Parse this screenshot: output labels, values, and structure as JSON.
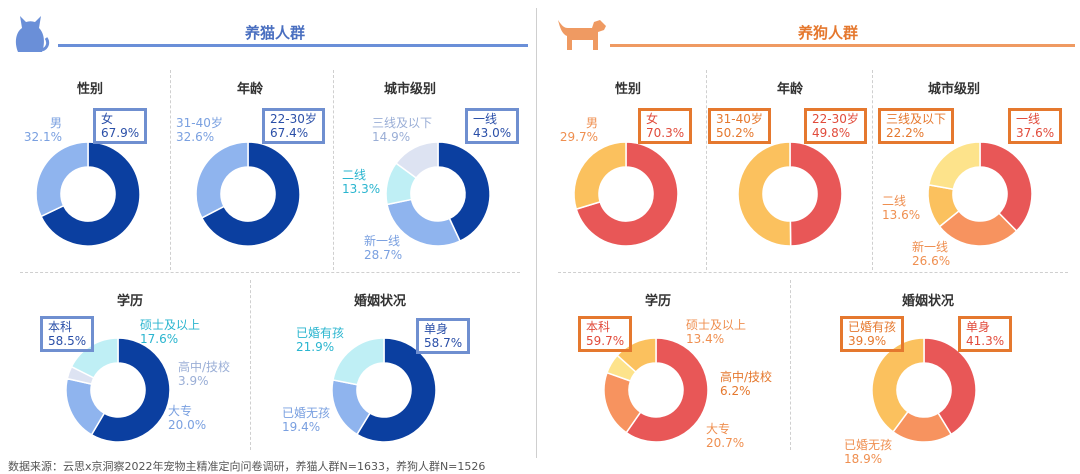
{
  "colors": {
    "cat_theme": "#6a8fd8",
    "dog_theme": "#ef9a62",
    "cat_box": "#6f8fd0",
    "dog_box": "#e5782e",
    "cat_text": "#7aa0e0",
    "dog_text": "#ef8f50"
  },
  "icons": {
    "cat": "cat-icon",
    "dog": "dog-icon"
  },
  "cat": {
    "title": "养猫人群"
  },
  "dog": {
    "title": "养狗人群"
  },
  "footer": "数据来源：云思x京洞察2022年宠物主精准定向问卷调研，养猫人群N=1633，养狗人群N=1526",
  "chart_data": [
    {
      "id": "cat-gender",
      "type": "pie",
      "title": "性别",
      "slices": [
        {
          "label": "女",
          "value": 67.9,
          "pct": "67.9%",
          "color": "#0b3fa0"
        },
        {
          "label": "男",
          "value": 32.1,
          "pct": "32.1%",
          "color": "#8fb4ee"
        }
      ]
    },
    {
      "id": "cat-age",
      "type": "pie",
      "title": "年龄",
      "slices": [
        {
          "label": "22-30岁",
          "value": 67.4,
          "pct": "67.4%",
          "color": "#0b3fa0"
        },
        {
          "label": "31-40岁",
          "value": 32.6,
          "pct": "32.6%",
          "color": "#8fb4ee"
        }
      ]
    },
    {
      "id": "cat-city",
      "type": "pie",
      "title": "城市级别",
      "slices": [
        {
          "label": "一线",
          "value": 43.0,
          "pct": "43.0%",
          "color": "#0b3fa0"
        },
        {
          "label": "新一线",
          "value": 28.7,
          "pct": "28.7%",
          "color": "#8fb4ee"
        },
        {
          "label": "二线",
          "value": 13.3,
          "pct": "13.3%",
          "color": "#bfeff5"
        },
        {
          "label": "三线及以下",
          "value": 14.9,
          "pct": "14.9%",
          "color": "#dde3f2"
        }
      ]
    },
    {
      "id": "cat-edu",
      "type": "pie",
      "title": "学历",
      "slices": [
        {
          "label": "本科",
          "value": 58.5,
          "pct": "58.5%",
          "color": "#0b3fa0"
        },
        {
          "label": "大专",
          "value": 20.0,
          "pct": "20.0%",
          "color": "#8fb4ee"
        },
        {
          "label": "高中/技校",
          "value": 3.9,
          "pct": "3.9%",
          "color": "#dde3f2"
        },
        {
          "label": "硕士及以上",
          "value": 17.6,
          "pct": "17.6%",
          "color": "#bfeff5"
        }
      ]
    },
    {
      "id": "cat-marriage",
      "type": "pie",
      "title": "婚姻状况",
      "slices": [
        {
          "label": "单身",
          "value": 58.7,
          "pct": "58.7%",
          "color": "#0b3fa0"
        },
        {
          "label": "已婚无孩",
          "value": 19.4,
          "pct": "19.4%",
          "color": "#8fb4ee"
        },
        {
          "label": "已婚有孩",
          "value": 21.9,
          "pct": "21.9%",
          "color": "#bfeff5"
        }
      ]
    },
    {
      "id": "dog-gender",
      "type": "pie",
      "title": "性别",
      "slices": [
        {
          "label": "女",
          "value": 70.3,
          "pct": "70.3%",
          "color": "#e85757"
        },
        {
          "label": "男",
          "value": 29.7,
          "pct": "29.7%",
          "color": "#fbc15e"
        }
      ]
    },
    {
      "id": "dog-age",
      "type": "pie",
      "title": "年龄",
      "slices": [
        {
          "label": "22-30岁",
          "value": 49.8,
          "pct": "49.8%",
          "color": "#e85757"
        },
        {
          "label": "31-40岁",
          "value": 50.2,
          "pct": "50.2%",
          "color": "#fbc15e"
        }
      ]
    },
    {
      "id": "dog-city",
      "type": "pie",
      "title": "城市级别",
      "slices": [
        {
          "label": "一线",
          "value": 37.6,
          "pct": "37.6%",
          "color": "#e85757"
        },
        {
          "label": "新一线",
          "value": 26.6,
          "pct": "26.6%",
          "color": "#f7935f"
        },
        {
          "label": "二线",
          "value": 13.6,
          "pct": "13.6%",
          "color": "#fbc15e"
        },
        {
          "label": "三线及以下",
          "value": 22.2,
          "pct": "22.2%",
          "color": "#fde38b"
        }
      ]
    },
    {
      "id": "dog-edu",
      "type": "pie",
      "title": "学历",
      "slices": [
        {
          "label": "本科",
          "value": 59.7,
          "pct": "59.7%",
          "color": "#e85757"
        },
        {
          "label": "大专",
          "value": 20.7,
          "pct": "20.7%",
          "color": "#f7935f"
        },
        {
          "label": "高中/技校",
          "value": 6.2,
          "pct": "6.2%",
          "color": "#fde38b"
        },
        {
          "label": "硕士及以上",
          "value": 13.4,
          "pct": "13.4%",
          "color": "#fbc15e"
        }
      ]
    },
    {
      "id": "dog-marriage",
      "type": "pie",
      "title": "婚姻状况",
      "slices": [
        {
          "label": "单身",
          "value": 41.3,
          "pct": "41.3%",
          "color": "#e85757"
        },
        {
          "label": "已婚无孩",
          "value": 18.9,
          "pct": "18.9%",
          "color": "#f7935f"
        },
        {
          "label": "已婚有孩",
          "value": 39.9,
          "pct": "39.9%",
          "color": "#fbc15e"
        }
      ]
    }
  ]
}
